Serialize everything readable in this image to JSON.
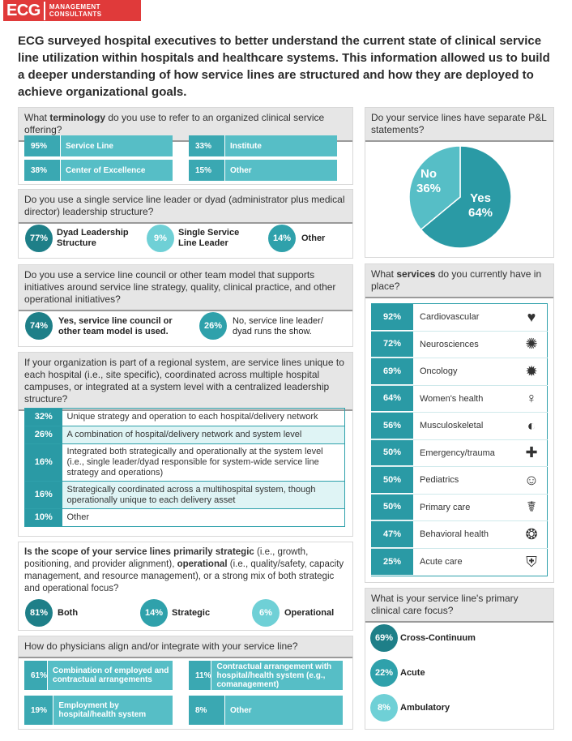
{
  "header": {
    "logo_main": "ECG",
    "logo_sub1": "MANAGEMENT",
    "logo_sub2": "CONSULTANTS"
  },
  "intro": "ECG surveyed hospital executives to better understand the current state of clinical service line utilization within hospitals and healthcare systems. This information allowed us to build a deeper understanding of how service lines are structured and how they are deployed to achieve organizational goals.",
  "q1": {
    "pre": "What ",
    "bold": "terminology",
    "post": " do you use to refer to an organized clinical service offering?",
    "items": [
      {
        "pct": "95%",
        "label": "Service Line"
      },
      {
        "pct": "33%",
        "label": "Institute"
      },
      {
        "pct": "38%",
        "label": "Center of Excellence"
      },
      {
        "pct": "15%",
        "label": "Other"
      }
    ]
  },
  "q2": {
    "question": "Do you use a single service line leader or dyad (administrator plus medical director) leadership structure?",
    "items": [
      {
        "pct": "77%",
        "label": "Dyad Leadership Structure"
      },
      {
        "pct": "9%",
        "label": "Single Service Line Leader"
      },
      {
        "pct": "14%",
        "label": "Other"
      }
    ]
  },
  "q3": {
    "question": "Do you use a service line council or other team model that supports initiatives around service line strategy, quality, clinical practice, and other operational initiatives?",
    "items": [
      {
        "pct": "74%",
        "label": "Yes, service line council or other team model is used."
      },
      {
        "pct": "26%",
        "label": "No, service line leader/ dyad runs the show."
      }
    ]
  },
  "q4": {
    "question": "If your organization is part of a regional system, are service lines unique to each hospital (i.e., site specific), coordinated across multiple hospital campuses, or integrated at a system level with a centralized leadership structure?",
    "rows": [
      {
        "pct": "32%",
        "label": "Unique strategy and operation to each hospital/delivery network"
      },
      {
        "pct": "26%",
        "label": "A combination of hospital/delivery network and system level"
      },
      {
        "pct": "16%",
        "label": "Integrated both strategically and operationally at the system level (i.e., single leader/dyad responsible for system-wide service line strategy and operations)"
      },
      {
        "pct": "16%",
        "label": "Strategically coordinated across a multihospital system, though operationally unique to each delivery asset"
      },
      {
        "pct": "10%",
        "label": "Other"
      }
    ]
  },
  "q5": {
    "t1": "Is the scope of your service lines primarily ",
    "b1": "strategic",
    "t2": " (i.e., growth, positioning, and provider alignment), ",
    "b2": "operational",
    "t3": " (i.e., quality/safety, capacity management, and resource management), or a strong mix of both strategic and operational focus?",
    "items": [
      {
        "pct": "81%",
        "label": "Both"
      },
      {
        "pct": "14%",
        "label": "Strategic"
      },
      {
        "pct": "6%",
        "label": "Operational"
      }
    ]
  },
  "q6": {
    "question": "How do physicians align and/or integrate with your service line?",
    "items": [
      {
        "pct": "61%",
        "label": "Combination of employed and contractual arrangements"
      },
      {
        "pct": "11%",
        "label": "Contractual arrangement with hospital/health system (e.g., comanagement)"
      },
      {
        "pct": "19%",
        "label": "Employment by hospital/health system"
      },
      {
        "pct": "8%",
        "label": "Other"
      }
    ]
  },
  "pl": {
    "question": "Do your service lines have separate P&L statements?",
    "no_label": "No",
    "no_pct": "36%",
    "yes_label": "Yes",
    "yes_pct": "64%"
  },
  "chart_data": {
    "type": "pie",
    "categories": [
      "Yes",
      "No"
    ],
    "values": [
      64,
      36
    ]
  },
  "services": {
    "pre": "What ",
    "bold": "services",
    "post": " do you currently have in place?",
    "items": [
      {
        "pct": "92%",
        "label": "Cardiovascular",
        "icon": "heart-icon",
        "glyph": "♥"
      },
      {
        "pct": "72%",
        "label": "Neurosciences",
        "icon": "brain-icon",
        "glyph": "✺"
      },
      {
        "pct": "69%",
        "label": "Oncology",
        "icon": "cell-icon",
        "glyph": "✹"
      },
      {
        "pct": "64%",
        "label": "Women's health",
        "icon": "woman-icon",
        "glyph": "♀"
      },
      {
        "pct": "56%",
        "label": "Musculoskeletal",
        "icon": "joint-icon",
        "glyph": "◐"
      },
      {
        "pct": "50%",
        "label": "Emergency/trauma",
        "icon": "ambulance-icon",
        "glyph": "✚"
      },
      {
        "pct": "50%",
        "label": "Pediatrics",
        "icon": "pediatrics-icon",
        "glyph": "☺"
      },
      {
        "pct": "50%",
        "label": "Primary care",
        "icon": "doctor-icon",
        "glyph": "☤"
      },
      {
        "pct": "47%",
        "label": "Behavioral health",
        "icon": "head-icon",
        "glyph": "❂"
      },
      {
        "pct": "25%",
        "label": "Acute care",
        "icon": "hospital-bed-icon",
        "glyph": "⛨"
      }
    ]
  },
  "focus": {
    "question": "What is your service line's primary clinical care focus?",
    "items": [
      {
        "pct": "69%",
        "label": "Cross-Continuum"
      },
      {
        "pct": "22%",
        "label": "Acute"
      },
      {
        "pct": "8%",
        "label": "Ambulatory"
      }
    ]
  },
  "colors": {
    "teal_dark": "#1e7f88",
    "teal_mid": "#2fa1ab",
    "teal_light": "#6fd0d6",
    "brand_red": "#e03a3a"
  }
}
